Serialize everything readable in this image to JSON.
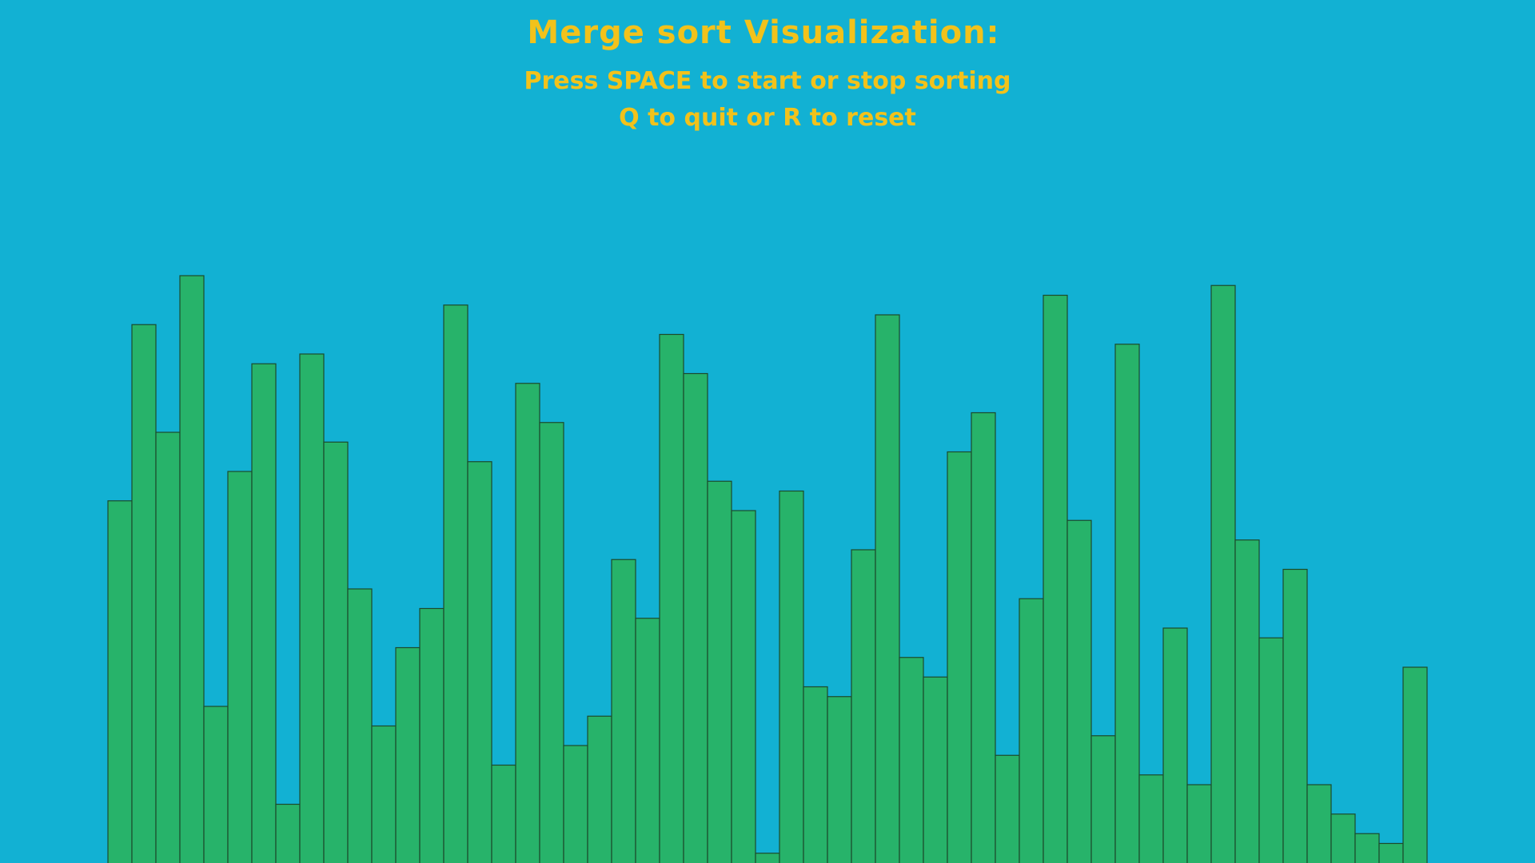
{
  "window": {
    "title": "Merge sort Visualization:",
    "instructions_line1": "Press SPACE to start or stop sorting",
    "instructions_line2": "Q to quit or R to reset"
  },
  "colors": {
    "background": "#12b1d3",
    "text": "#f2c21b",
    "bar_fill": "#27b36a",
    "bar_stroke": "#1c4a2c"
  },
  "chart_data": {
    "type": "bar",
    "values": [
      370,
      550,
      440,
      600,
      160,
      400,
      510,
      60,
      520,
      430,
      280,
      140,
      220,
      260,
      570,
      410,
      100,
      490,
      450,
      120,
      150,
      310,
      250,
      540,
      500,
      390,
      360,
      10,
      380,
      180,
      170,
      320,
      560,
      210,
      190,
      420,
      460,
      110,
      270,
      580,
      350,
      130,
      530,
      90,
      240,
      80,
      590,
      330,
      230,
      300,
      80,
      50,
      30,
      20,
      200
    ],
    "ylim": [
      0,
      720
    ]
  }
}
